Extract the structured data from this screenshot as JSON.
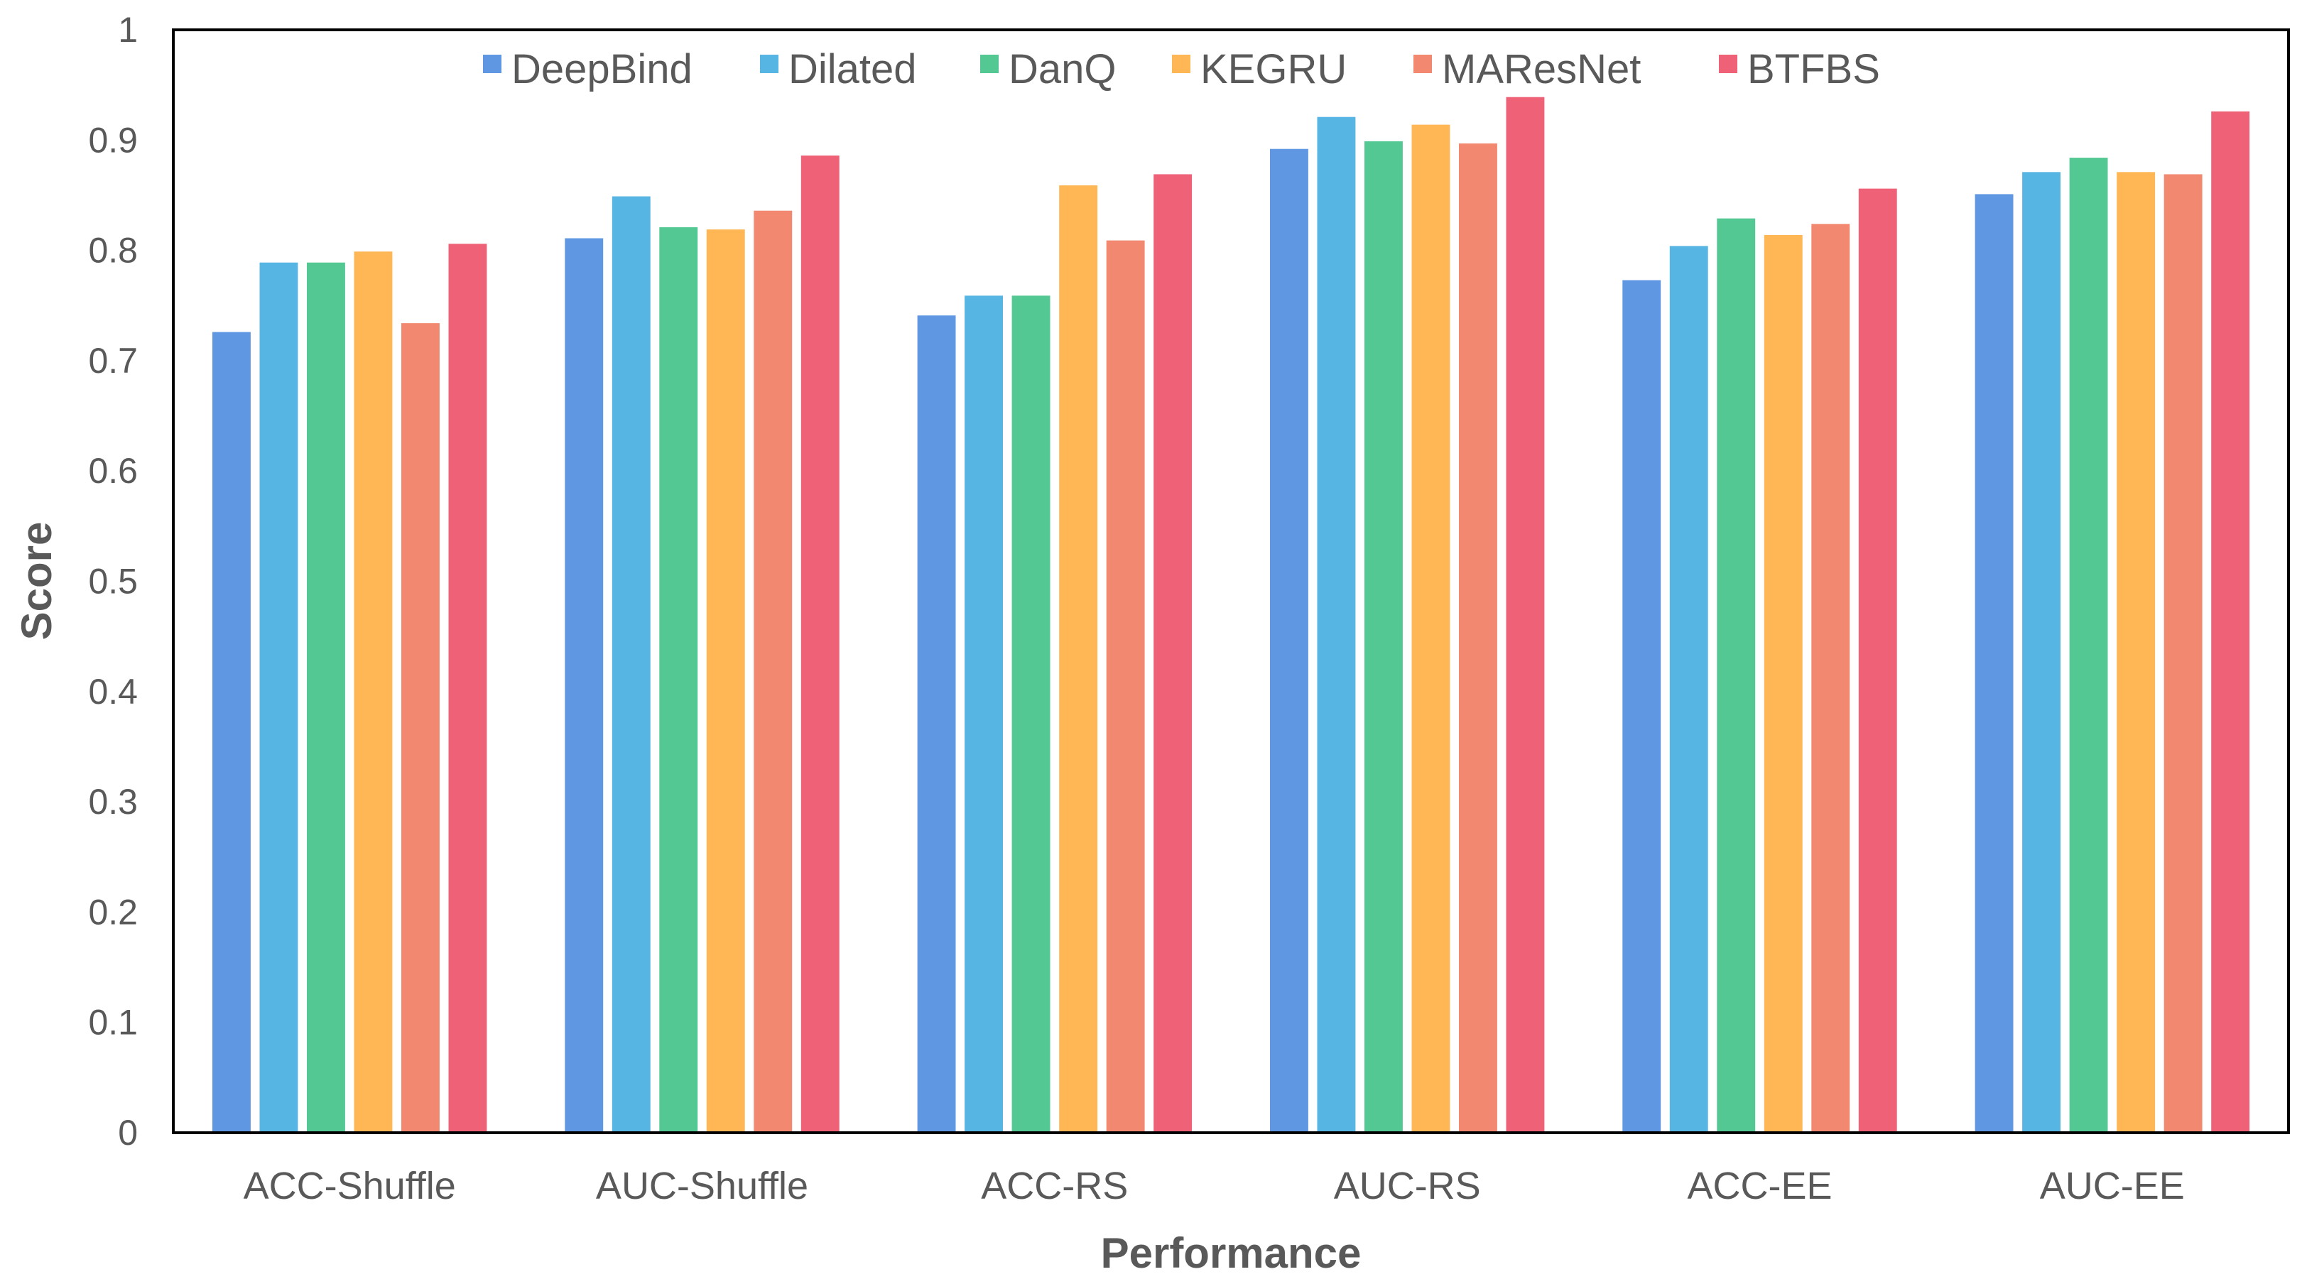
{
  "chart_data": {
    "type": "bar",
    "title": "",
    "xlabel": "Performance",
    "ylabel": "Score",
    "ylim": [
      0,
      1
    ],
    "yticks": [
      "0",
      "0.1",
      "0.2",
      "0.3",
      "0.4",
      "0.5",
      "0.6",
      "0.7",
      "0.8",
      "0.9",
      "1"
    ],
    "grid": false,
    "legend_position": "top",
    "categories": [
      "ACC-Shuffle",
      "AUC-Shuffle",
      "ACC-RS",
      "AUC-RS",
      "ACC-EE",
      "AUC-EE"
    ],
    "series": [
      {
        "name": "DeepBind",
        "color": "#6097E3",
        "values": [
          0.726,
          0.811,
          0.741,
          0.892,
          0.773,
          0.851
        ]
      },
      {
        "name": "Dilated",
        "color": "#57B5E3",
        "values": [
          0.789,
          0.849,
          0.759,
          0.921,
          0.804,
          0.871
        ]
      },
      {
        "name": "DanQ",
        "color": "#54C893",
        "values": [
          0.789,
          0.821,
          0.759,
          0.899,
          0.829,
          0.884
        ]
      },
      {
        "name": "KEGRU",
        "color": "#FFB655",
        "values": [
          0.799,
          0.819,
          0.859,
          0.914,
          0.814,
          0.871
        ]
      },
      {
        "name": "MAResNet",
        "color": "#F1886F",
        "values": [
          0.734,
          0.836,
          0.809,
          0.897,
          0.824,
          0.869
        ]
      },
      {
        "name": "BTFBS",
        "color": "#EE6177",
        "values": [
          0.806,
          0.886,
          0.869,
          0.939,
          0.856,
          0.926
        ]
      }
    ]
  }
}
